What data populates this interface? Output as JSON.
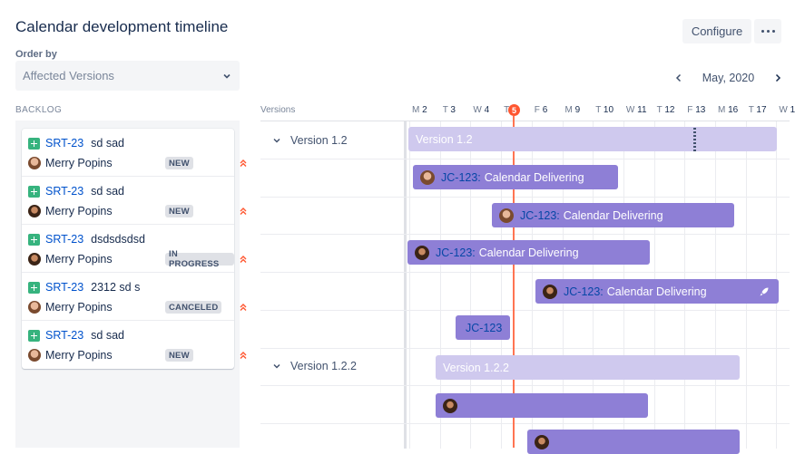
{
  "header": {
    "title": "Calendar development timeline",
    "configure_label": "Configure"
  },
  "order_by": {
    "label": "Order by",
    "value": "Affected Versions"
  },
  "month_nav": {
    "label": "May, 2020"
  },
  "backlog": {
    "label": "BACKLOG",
    "items": [
      {
        "key": "SRT-23",
        "summary": "sd sad",
        "assignee": "Merry Popins",
        "status": "NEW"
      },
      {
        "key": "SRT-23",
        "summary": "sd sad",
        "assignee": "Merry Popins",
        "status": "NEW"
      },
      {
        "key": "SRT-23",
        "summary": "dsdsdsdsd",
        "assignee": "Merry Popins",
        "status": "IN PROGRESS"
      },
      {
        "key": "SRT-23",
        "summary": "2312 sd s",
        "assignee": "Merry Popins",
        "status": "CANCELED"
      },
      {
        "key": "SRT-23",
        "summary": "sd sad",
        "assignee": "Merry Popins",
        "status": "NEW"
      }
    ]
  },
  "timeline": {
    "versions_label": "Versions",
    "today": "5",
    "days": [
      {
        "letter": "M",
        "num": "2"
      },
      {
        "letter": "T",
        "num": "3"
      },
      {
        "letter": "W",
        "num": "4"
      },
      {
        "letter": "T",
        "num": ""
      },
      {
        "letter": "F",
        "num": "6"
      },
      {
        "letter": "M",
        "num": "9"
      },
      {
        "letter": "T",
        "num": "10"
      },
      {
        "letter": "W",
        "num": "11"
      },
      {
        "letter": "T",
        "num": "12"
      },
      {
        "letter": "F",
        "num": "13"
      },
      {
        "letter": "M",
        "num": "16"
      },
      {
        "letter": "T",
        "num": "17"
      },
      {
        "letter": "W",
        "num": "1"
      }
    ],
    "versions": [
      {
        "name": "Version 1.2",
        "bar_label": "Version 1.2"
      },
      {
        "name": "Version 1.2.2",
        "bar_label": "Version 1.2.2"
      }
    ],
    "issues": [
      {
        "key": "JC-123:",
        "summary": "Calendar Delivering"
      },
      {
        "key": "JC-123:",
        "summary": "Calendar Delivering"
      },
      {
        "key": "JC-123:",
        "summary": "Calendar Delivering"
      },
      {
        "key": "JC-123:",
        "summary": "Calendar Delivering"
      },
      {
        "key": "JC-123",
        "summary": ""
      }
    ]
  },
  "colors": {
    "version_bar": "#cfc9ee",
    "issue_bar": "#8e7fd6",
    "today_line": "#ff7452",
    "story_icon": "#36b37e",
    "priority": "#ff5630"
  },
  "icons": [
    "more-icon",
    "chevron-down-icon",
    "chevron-left-icon",
    "chevron-right-icon",
    "story-icon",
    "priority-highest-icon",
    "rocket-icon"
  ]
}
